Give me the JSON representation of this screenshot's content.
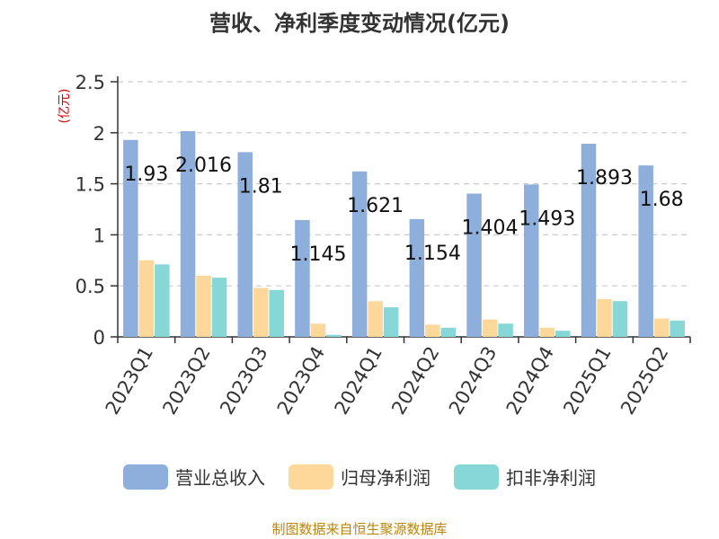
{
  "chart_data": {
    "type": "bar",
    "title": "营收、净利季度变动情况(亿元)",
    "ylabel": "(亿元)",
    "xlabel": "",
    "ylim": [
      0,
      2.5
    ],
    "yticks": [
      0,
      0.5,
      1,
      1.5,
      2,
      2.5
    ],
    "ytick_labels": [
      "0",
      "0.5",
      "1",
      "1.5",
      "2",
      "2.5"
    ],
    "grid": true,
    "legend_position": "bottom",
    "categories": [
      "2023Q1",
      "2023Q2",
      "2023Q3",
      "2023Q4",
      "2024Q1",
      "2024Q2",
      "2024Q3",
      "2024Q4",
      "2025Q1",
      "2025Q2"
    ],
    "series": [
      {
        "name": "营业总收入",
        "color": "#8eaedb",
        "values": [
          1.93,
          2.016,
          1.81,
          1.145,
          1.621,
          1.154,
          1.404,
          1.493,
          1.893,
          1.68
        ],
        "labels": [
          "1.93",
          "2.016",
          "1.81",
          "1.145",
          "1.621",
          "1.154",
          "1.404",
          "1.493",
          "1.893",
          "1.68"
        ]
      },
      {
        "name": "归母净利润",
        "color": "#fdd89a",
        "values": [
          0.75,
          0.6,
          0.48,
          0.13,
          0.35,
          0.12,
          0.17,
          0.09,
          0.37,
          0.18
        ]
      },
      {
        "name": "扣非净利润",
        "color": "#86d7d6",
        "values": [
          0.71,
          0.58,
          0.46,
          0.02,
          0.29,
          0.09,
          0.13,
          0.06,
          0.35,
          0.16
        ]
      }
    ]
  },
  "footer": {
    "source": "制图数据来自恒生聚源数据库"
  }
}
